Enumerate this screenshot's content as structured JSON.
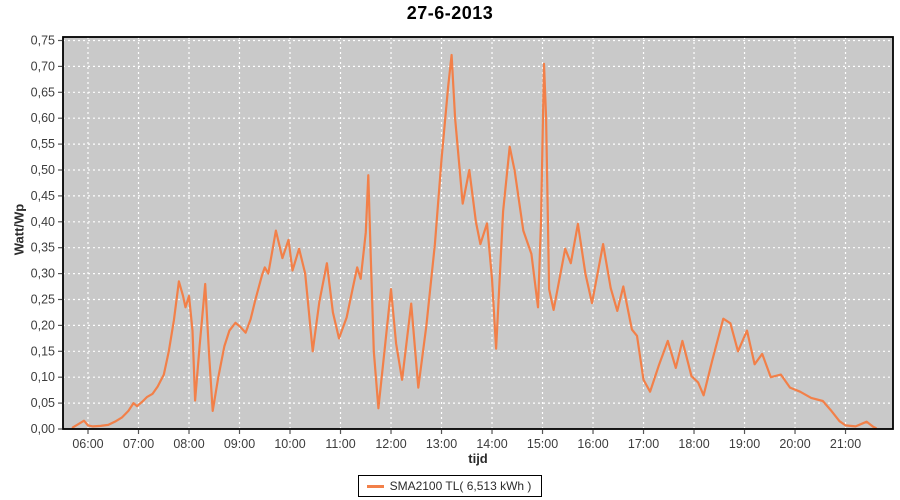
{
  "chart_data": {
    "type": "line",
    "title": "27-6-2013",
    "xlabel": "tijd",
    "ylabel": "Watt/Wp",
    "x_ticks": [
      "06:00",
      "07:00",
      "08:00",
      "09:00",
      "10:00",
      "11:00",
      "12:00",
      "13:00",
      "14:00",
      "15:00",
      "16:00",
      "17:00",
      "18:00",
      "19:00",
      "20:00",
      "21:00"
    ],
    "x_tick_hours": [
      6,
      7,
      8,
      9,
      10,
      11,
      12,
      13,
      14,
      15,
      16,
      17,
      18,
      19,
      20,
      21
    ],
    "y_ticks": [
      "0,00",
      "0,05",
      "0,10",
      "0,15",
      "0,20",
      "0,25",
      "0,30",
      "0,35",
      "0,40",
      "0,45",
      "0,50",
      "0,55",
      "0,60",
      "0,65",
      "0,70",
      "0,75"
    ],
    "y_tick_values": [
      0,
      0.05,
      0.1,
      0.15,
      0.2,
      0.25,
      0.3,
      0.35,
      0.4,
      0.45,
      0.5,
      0.55,
      0.6,
      0.65,
      0.7,
      0.75
    ],
    "xlim": [
      5.505,
      21.94
    ],
    "ylim": [
      0,
      0.75
    ],
    "grid": "white-dashed",
    "legend_position": "bottom-center",
    "colors": {
      "series": "#F28049",
      "plot_background": "#C9C9C9",
      "gridline": "#FFFFFF",
      "plot_border": "#000000",
      "tick_label": "#3d3d3d"
    },
    "series": [
      {
        "name": "SMA2100 TL( 6,513 kWh )",
        "points": [
          [
            5.7,
            0.003
          ],
          [
            5.82,
            0.01
          ],
          [
            5.92,
            0.016
          ],
          [
            6.0,
            0.007
          ],
          [
            6.1,
            0.005
          ],
          [
            6.25,
            0.006
          ],
          [
            6.4,
            0.008
          ],
          [
            6.55,
            0.015
          ],
          [
            6.67,
            0.022
          ],
          [
            6.8,
            0.035
          ],
          [
            6.9,
            0.05
          ],
          [
            6.97,
            0.044
          ],
          [
            7.08,
            0.053
          ],
          [
            7.17,
            0.062
          ],
          [
            7.28,
            0.068
          ],
          [
            7.38,
            0.082
          ],
          [
            7.5,
            0.105
          ],
          [
            7.6,
            0.15
          ],
          [
            7.7,
            0.21
          ],
          [
            7.8,
            0.285
          ],
          [
            7.88,
            0.258
          ],
          [
            7.93,
            0.235
          ],
          [
            8.0,
            0.257
          ],
          [
            8.07,
            0.19
          ],
          [
            8.12,
            0.055
          ],
          [
            8.21,
            0.16
          ],
          [
            8.32,
            0.28
          ],
          [
            8.4,
            0.14
          ],
          [
            8.47,
            0.035
          ],
          [
            8.58,
            0.1
          ],
          [
            8.7,
            0.16
          ],
          [
            8.8,
            0.19
          ],
          [
            8.92,
            0.205
          ],
          [
            9.02,
            0.197
          ],
          [
            9.12,
            0.186
          ],
          [
            9.22,
            0.212
          ],
          [
            9.32,
            0.252
          ],
          [
            9.45,
            0.298
          ],
          [
            9.5,
            0.312
          ],
          [
            9.57,
            0.3
          ],
          [
            9.72,
            0.383
          ],
          [
            9.85,
            0.33
          ],
          [
            9.97,
            0.365
          ],
          [
            10.05,
            0.306
          ],
          [
            10.18,
            0.348
          ],
          [
            10.3,
            0.3
          ],
          [
            10.45,
            0.15
          ],
          [
            10.58,
            0.245
          ],
          [
            10.73,
            0.32
          ],
          [
            10.85,
            0.225
          ],
          [
            10.97,
            0.175
          ],
          [
            11.12,
            0.215
          ],
          [
            11.25,
            0.275
          ],
          [
            11.33,
            0.312
          ],
          [
            11.4,
            0.29
          ],
          [
            11.5,
            0.38
          ],
          [
            11.55,
            0.49
          ],
          [
            11.6,
            0.33
          ],
          [
            11.66,
            0.15
          ],
          [
            11.75,
            0.04
          ],
          [
            11.88,
            0.16
          ],
          [
            12.0,
            0.27
          ],
          [
            12.1,
            0.165
          ],
          [
            12.22,
            0.095
          ],
          [
            12.4,
            0.242
          ],
          [
            12.54,
            0.08
          ],
          [
            12.7,
            0.2
          ],
          [
            12.87,
            0.357
          ],
          [
            13.0,
            0.52
          ],
          [
            13.13,
            0.66
          ],
          [
            13.2,
            0.722
          ],
          [
            13.27,
            0.6
          ],
          [
            13.42,
            0.435
          ],
          [
            13.55,
            0.5
          ],
          [
            13.68,
            0.4
          ],
          [
            13.77,
            0.357
          ],
          [
            13.9,
            0.397
          ],
          [
            14.0,
            0.29
          ],
          [
            14.08,
            0.155
          ],
          [
            14.22,
            0.42
          ],
          [
            14.35,
            0.545
          ],
          [
            14.45,
            0.498
          ],
          [
            14.62,
            0.383
          ],
          [
            14.78,
            0.338
          ],
          [
            14.91,
            0.235
          ],
          [
            14.97,
            0.4
          ],
          [
            15.03,
            0.705
          ],
          [
            15.07,
            0.6
          ],
          [
            15.13,
            0.27
          ],
          [
            15.22,
            0.23
          ],
          [
            15.45,
            0.348
          ],
          [
            15.56,
            0.32
          ],
          [
            15.7,
            0.396
          ],
          [
            15.85,
            0.3
          ],
          [
            15.98,
            0.243
          ],
          [
            16.2,
            0.357
          ],
          [
            16.35,
            0.272
          ],
          [
            16.48,
            0.228
          ],
          [
            16.6,
            0.275
          ],
          [
            16.77,
            0.192
          ],
          [
            16.87,
            0.18
          ],
          [
            17.0,
            0.095
          ],
          [
            17.13,
            0.072
          ],
          [
            17.3,
            0.122
          ],
          [
            17.48,
            0.17
          ],
          [
            17.64,
            0.118
          ],
          [
            17.77,
            0.17
          ],
          [
            17.95,
            0.102
          ],
          [
            18.08,
            0.09
          ],
          [
            18.19,
            0.065
          ],
          [
            18.36,
            0.132
          ],
          [
            18.58,
            0.213
          ],
          [
            18.72,
            0.204
          ],
          [
            18.87,
            0.15
          ],
          [
            19.05,
            0.19
          ],
          [
            19.2,
            0.125
          ],
          [
            19.35,
            0.145
          ],
          [
            19.52,
            0.1
          ],
          [
            19.72,
            0.105
          ],
          [
            19.9,
            0.08
          ],
          [
            20.1,
            0.072
          ],
          [
            20.32,
            0.06
          ],
          [
            20.55,
            0.054
          ],
          [
            20.72,
            0.035
          ],
          [
            20.88,
            0.015
          ],
          [
            21.0,
            0.007
          ],
          [
            21.2,
            0.005
          ],
          [
            21.42,
            0.014
          ],
          [
            21.55,
            0.004
          ],
          [
            21.6,
            0.002
          ]
        ]
      }
    ]
  }
}
